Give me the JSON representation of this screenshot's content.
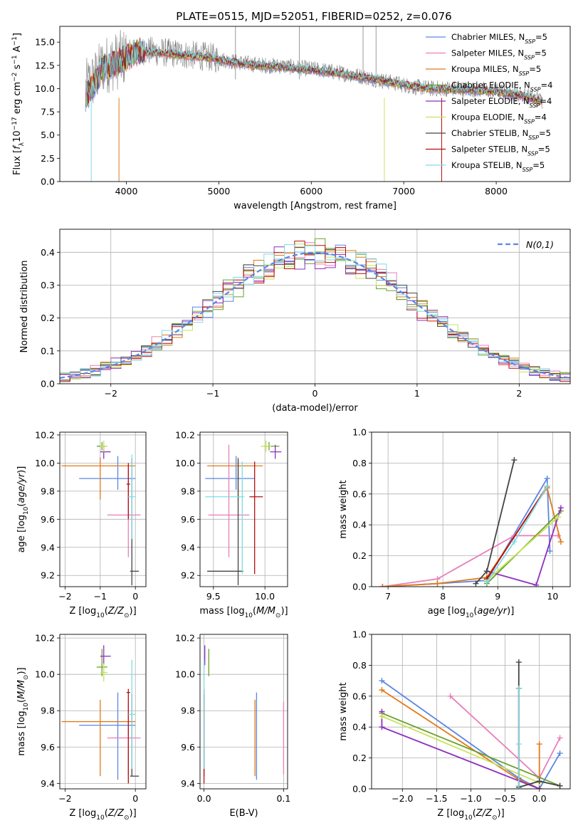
{
  "figure": {
    "title": "PLATE=0515, MJD=52051, FIBERID=0252, z=0.076"
  },
  "models": [
    {
      "name": "Chabrier MILES",
      "nssp": "5",
      "color": "#5b86e5"
    },
    {
      "name": "Salpeter MILES",
      "nssp": "5",
      "color": "#e87fb8"
    },
    {
      "name": "Kroupa MILES",
      "nssp": "5",
      "color": "#e07b1a"
    },
    {
      "name": "Chabrier ELODIE",
      "nssp": "4",
      "color": "#6aa02c"
    },
    {
      "name": "Salpeter ELODIE",
      "nssp": "4",
      "color": "#8e2fbf"
    },
    {
      "name": "Kroupa ELODIE",
      "nssp": "4",
      "color": "#c8e35a"
    },
    {
      "name": "Chabrier STELIB",
      "nssp": "5",
      "color": "#444444"
    },
    {
      "name": "Salpeter STELIB",
      "nssp": "5",
      "color": "#b30f0f"
    },
    {
      "name": "Kroupa STELIB",
      "nssp": "5",
      "color": "#7fdbe6"
    }
  ],
  "chart_data": [
    {
      "id": "spectrum",
      "type": "line",
      "xlabel": "wavelength [Angstrom, rest frame]",
      "ylabel": "Flux [f_λ 10^-17 erg cm^-2 s^-1 A^-1]",
      "xlim": [
        3280,
        8800
      ],
      "ylim": [
        0,
        16.7
      ],
      "xticks": [
        4000,
        5000,
        6000,
        7000,
        8000
      ],
      "yticks": [
        0.0,
        2.5,
        5.0,
        7.5,
        10.0,
        12.5,
        15.0
      ],
      "grid": false,
      "legend": "upper right",
      "data_continuum": {
        "x": [
          3560,
          3650,
          3750,
          3850,
          3950,
          4000,
          4100,
          4200,
          4300,
          4500,
          4700,
          4900,
          5100,
          5300,
          5500,
          5700,
          5900,
          6100,
          6300,
          6500,
          6700,
          6900,
          7100,
          7300,
          7500,
          7800,
          8100,
          8300,
          8500
        ],
        "y": [
          10.0,
          11.0,
          12.5,
          12.8,
          13.2,
          13.5,
          14.0,
          14.1,
          14.0,
          13.8,
          13.6,
          13.4,
          13.0,
          12.7,
          12.5,
          12.4,
          12.2,
          12.0,
          11.7,
          11.4,
          11.0,
          10.6,
          10.2,
          10.0,
          10.0,
          9.9,
          9.6,
          9.3,
          8.7
        ]
      },
      "model_continuum": {
        "x": [
          3560,
          3650,
          3750,
          3850,
          3950,
          4000,
          4100,
          4200,
          4300,
          4500,
          4700,
          4900,
          5100,
          5300,
          5500,
          5700,
          5900,
          6100,
          6300,
          6500,
          6700,
          6900,
          7100,
          7300,
          7500,
          7800,
          8100,
          8300,
          8500
        ],
        "y": [
          9.0,
          10.5,
          12.2,
          12.5,
          13.0,
          13.3,
          13.9,
          14.0,
          13.9,
          13.7,
          13.5,
          13.3,
          12.9,
          12.6,
          12.4,
          12.3,
          12.1,
          11.9,
          11.6,
          11.3,
          11.0,
          10.6,
          10.2,
          10.0,
          9.9,
          9.8,
          9.5,
          9.2,
          8.6
        ]
      }
    },
    {
      "id": "residuals",
      "type": "histogram",
      "xlabel": "(data-model)/error",
      "ylabel": "Normed distribution",
      "xlim": [
        -2.5,
        2.5
      ],
      "ylim": [
        0,
        0.47
      ],
      "xticks": [
        -2,
        -1,
        0,
        1,
        2
      ],
      "yticks": [
        0.0,
        0.1,
        0.2,
        0.3,
        0.4
      ],
      "grid": true,
      "legend": "upper right",
      "reference_label": "N(0,1)",
      "reference_color": "#5b86e5",
      "bin_width": 0.1,
      "bin_start": -2.5
    },
    {
      "id": "age_vs_Z",
      "type": "errorbar",
      "xlabel": "Z [log10(Z/Z☉)]",
      "ylabel": "age  [log10(age/yr)]",
      "xlim": [
        -2.15,
        0.3
      ],
      "ylim": [
        9.12,
        10.22
      ],
      "xticks": [
        -2,
        -1,
        0
      ],
      "yticks": [
        9.2,
        9.4,
        9.6,
        9.8,
        10.0,
        10.2
      ],
      "grid": true,
      "points": [
        {
          "model": 0,
          "x": -0.5,
          "xerr": [
            1.1,
            0.5
          ],
          "y": 9.89,
          "yerr": [
            0.08,
            0.16
          ]
        },
        {
          "model": 1,
          "x": -0.2,
          "xerr": [
            0.6,
            0.35
          ],
          "y": 9.63,
          "yerr": [
            0.3,
            0.35
          ]
        },
        {
          "model": 2,
          "x": -1.0,
          "xerr": [
            1.1,
            1.0
          ],
          "y": 9.98,
          "yerr": [
            0.24,
            0.06
          ]
        },
        {
          "model": 3,
          "x": -0.95,
          "xerr": [
            0.15,
            0.15
          ],
          "y": 10.12,
          "yerr": [
            0.03,
            0.03
          ]
        },
        {
          "model": 4,
          "x": -0.9,
          "xerr": [
            0.1,
            0.2
          ],
          "y": 10.08,
          "yerr": [
            0.05,
            0.05
          ]
        },
        {
          "model": 5,
          "x": -0.9,
          "xerr": [
            0.1,
            0.1
          ],
          "y": 10.12,
          "yerr": [
            0.04,
            0.04
          ]
        },
        {
          "model": 6,
          "x": -0.1,
          "xerr": [
            0.05,
            0.2
          ],
          "y": 9.23,
          "yerr": [
            0.1,
            0.8
          ]
        },
        {
          "model": 7,
          "x": -0.2,
          "xerr": [
            0.05,
            0.05
          ],
          "y": 9.85,
          "yerr": [
            0.25,
            0.15
          ]
        },
        {
          "model": 8,
          "x": -0.1,
          "xerr": [
            0.1,
            0.1
          ],
          "y": 9.76,
          "yerr": [
            0.3,
            0.3
          ]
        }
      ]
    },
    {
      "id": "age_vs_mass",
      "type": "errorbar",
      "xlabel": "mass [log10(M/M☉)]",
      "ylabel": "",
      "xlim": [
        9.37,
        10.22
      ],
      "ylim": [
        9.12,
        10.22
      ],
      "xticks": [
        9.5,
        10.0
      ],
      "yticks": [
        9.2,
        9.4,
        9.6,
        9.8,
        10.0,
        10.2
      ],
      "grid": true,
      "points": [
        {
          "model": 0,
          "x": 9.72,
          "xerr": [
            0.3,
            0.18
          ],
          "y": 9.89,
          "yerr": [
            0.08,
            0.16
          ]
        },
        {
          "model": 1,
          "x": 9.65,
          "xerr": [
            0.2,
            0.2
          ],
          "y": 9.63,
          "yerr": [
            0.3,
            0.5
          ]
        },
        {
          "model": 2,
          "x": 9.74,
          "xerr": [
            0.3,
            0.24
          ],
          "y": 9.98,
          "yerr": [
            0.24,
            0.06
          ]
        },
        {
          "model": 3,
          "x": 10.04,
          "xerr": [
            0.05,
            0.1
          ],
          "y": 10.12,
          "yerr": [
            0.03,
            0.03
          ]
        },
        {
          "model": 4,
          "x": 10.1,
          "xerr": [
            0.05,
            0.06
          ],
          "y": 10.08,
          "yerr": [
            0.05,
            0.05
          ]
        },
        {
          "model": 5,
          "x": 10.01,
          "xerr": [
            0.05,
            0.05
          ],
          "y": 10.12,
          "yerr": [
            0.04,
            0.04
          ]
        },
        {
          "model": 6,
          "x": 9.74,
          "xerr": [
            0.3,
            0.05
          ],
          "y": 9.23,
          "yerr": [
            0.1,
            0.8
          ]
        },
        {
          "model": 7,
          "x": 9.9,
          "xerr": [
            0.05,
            0.08
          ],
          "y": 9.76,
          "yerr": [
            0.55,
            0.25
          ]
        },
        {
          "model": 8,
          "x": 9.78,
          "xerr": [
            0.36,
            0.02
          ],
          "y": 9.76,
          "yerr": [
            0.55,
            0.25
          ]
        }
      ]
    },
    {
      "id": "mass_weight_vs_age",
      "type": "line",
      "xlabel": "age  [log10(age/yr)]",
      "ylabel": "mass weight",
      "xlim": [
        6.7,
        10.32
      ],
      "ylim": [
        0,
        1.0
      ],
      "xticks": [
        7,
        8,
        9,
        10
      ],
      "yticks": [
        0.0,
        0.2,
        0.4,
        0.6,
        0.8,
        1.0
      ],
      "grid": true,
      "series": [
        {
          "model": 0,
          "x": [
            6.9,
            7.9,
            8.8,
            9.9,
            9.95
          ],
          "y": [
            0.0,
            0.02,
            0.04,
            0.7,
            0.23
          ]
        },
        {
          "model": 1,
          "x": [
            6.9,
            7.9,
            9.3,
            10.1
          ],
          "y": [
            0.0,
            0.05,
            0.33,
            0.33
          ]
        },
        {
          "model": 2,
          "x": [
            6.9,
            7.9,
            8.8,
            9.9,
            10.15
          ],
          "y": [
            0.0,
            0.02,
            0.06,
            0.64,
            0.29
          ]
        },
        {
          "model": 3,
          "x": [
            8.8,
            10.15
          ],
          "y": [
            0.02,
            0.49
          ]
        },
        {
          "model": 4,
          "x": [
            8.8,
            9.7,
            10.15
          ],
          "y": [
            0.1,
            0.01,
            0.51
          ]
        },
        {
          "model": 5,
          "x": [
            8.8,
            10.1
          ],
          "y": [
            0.04,
            0.45
          ]
        },
        {
          "model": 6,
          "x": [
            8.6,
            8.8,
            9.3
          ],
          "y": [
            0.02,
            0.1,
            0.82
          ]
        },
        {
          "model": 7,
          "x": [
            8.8,
            9.9
          ],
          "y": [
            0.05,
            0.65
          ]
        },
        {
          "model": 8,
          "x": [
            8.8,
            9.3,
            9.9
          ],
          "y": [
            0.03,
            0.29,
            0.65
          ]
        }
      ]
    },
    {
      "id": "mass_vs_Z",
      "type": "errorbar",
      "xlabel": "Z [log10(Z/Z☉)]",
      "ylabel": "mass [log10(M/M☉)]",
      "xlim": [
        -2.15,
        0.3
      ],
      "ylim": [
        9.37,
        10.22
      ],
      "xticks": [
        -2,
        0
      ],
      "yticks": [
        9.4,
        9.6,
        9.8,
        10.0,
        10.2
      ],
      "grid": true,
      "points": [
        {
          "model": 0,
          "x": -0.5,
          "xerr": [
            1.1,
            0.5
          ],
          "y": 9.72,
          "yerr": [
            0.3,
            0.18
          ]
        },
        {
          "model": 1,
          "x": -0.2,
          "xerr": [
            0.6,
            0.35
          ],
          "y": 9.65,
          "yerr": [
            0.2,
            0.2
          ]
        },
        {
          "model": 2,
          "x": -1.0,
          "xerr": [
            1.1,
            1.0
          ],
          "y": 9.74,
          "yerr": [
            0.3,
            0.12
          ]
        },
        {
          "model": 3,
          "x": -0.95,
          "xerr": [
            0.15,
            0.15
          ],
          "y": 10.04,
          "yerr": [
            0.05,
            0.1
          ]
        },
        {
          "model": 4,
          "x": -0.9,
          "xerr": [
            0.1,
            0.2
          ],
          "y": 10.1,
          "yerr": [
            0.05,
            0.06
          ]
        },
        {
          "model": 5,
          "x": -0.9,
          "xerr": [
            0.1,
            0.1
          ],
          "y": 10.01,
          "yerr": [
            0.05,
            0.05
          ]
        },
        {
          "model": 6,
          "x": -0.1,
          "xerr": [
            0.05,
            0.2
          ],
          "y": 9.44,
          "yerr": [
            0.0,
            0.45
          ]
        },
        {
          "model": 7,
          "x": -0.2,
          "xerr": [
            0.05,
            0.05
          ],
          "y": 9.9,
          "yerr": [
            0.5,
            0.02
          ]
        },
        {
          "model": 8,
          "x": -0.1,
          "xerr": [
            0.1,
            0.1
          ],
          "y": 9.78,
          "yerr": [
            0.3,
            0.3
          ]
        }
      ]
    },
    {
      "id": "mass_vs_EBV",
      "type": "errorbar",
      "xlabel": "E(B-V)",
      "ylabel": "",
      "xlim": [
        -0.005,
        0.105
      ],
      "ylim": [
        9.37,
        10.22
      ],
      "xticks": [
        0.0,
        0.1
      ],
      "yticks": [
        9.4,
        9.6,
        9.8,
        10.0,
        10.2
      ],
      "grid": true,
      "points": [
        {
          "model": 0,
          "x": 0.066,
          "y": 9.72,
          "yerr": [
            0.3,
            0.18
          ]
        },
        {
          "model": 1,
          "x": 0.1,
          "y": 9.65,
          "yerr": [
            0.2,
            0.2
          ]
        },
        {
          "model": 2,
          "x": 0.064,
          "y": 9.74,
          "yerr": [
            0.3,
            0.12
          ]
        },
        {
          "model": 3,
          "x": 0.006,
          "y": 10.04,
          "yerr": [
            0.05,
            0.1
          ]
        },
        {
          "model": 4,
          "x": 0.001,
          "y": 10.1,
          "yerr": [
            0.05,
            0.06
          ]
        },
        {
          "model": 5,
          "x": 0.0,
          "y": 10.01,
          "yerr": [
            0.05,
            0.05
          ]
        },
        {
          "model": 6,
          "x": 0.0,
          "y": 9.44,
          "yerr": [
            0.0,
            0.45
          ]
        },
        {
          "model": 7,
          "x": 0.0,
          "y": 9.9,
          "yerr": [
            0.5,
            0.02
          ]
        },
        {
          "model": 8,
          "x": 0.0,
          "y": 9.78,
          "yerr": [
            0.3,
            0.3
          ]
        }
      ]
    },
    {
      "id": "mass_weight_vs_Z",
      "type": "line",
      "xlabel": "Z [log10(Z/Z☉)]",
      "ylabel": "mass weight",
      "xlim": [
        -2.45,
        0.45
      ],
      "ylim": [
        0,
        1.0
      ],
      "xticks": [
        -2.0,
        -1.5,
        -1.0,
        -0.5,
        0.0
      ],
      "yticks": [
        0.0,
        0.2,
        0.4,
        0.6,
        0.8,
        1.0
      ],
      "grid": true,
      "series": [
        {
          "model": 0,
          "x": [
            -2.3,
            -0.3,
            0.0,
            0.3
          ],
          "y": [
            0.7,
            0.07,
            0.0,
            0.23
          ]
        },
        {
          "model": 1,
          "x": [
            -1.3,
            0.0,
            0.3
          ],
          "y": [
            0.6,
            0.07,
            0.33
          ]
        },
        {
          "model": 2,
          "x": [
            -2.3,
            -0.3,
            0.0,
            0.0
          ],
          "y": [
            0.64,
            0.06,
            0.0,
            0.29
          ]
        },
        {
          "model": 3,
          "x": [
            -2.3,
            0.3
          ],
          "y": [
            0.49,
            0.02
          ]
        },
        {
          "model": 4,
          "x": [
            -2.3,
            -2.3,
            0.0
          ],
          "y": [
            0.5,
            0.4,
            0.0
          ]
        },
        {
          "model": 5,
          "x": [
            -2.3,
            0.0
          ],
          "y": [
            0.47,
            0.04
          ]
        },
        {
          "model": 6,
          "x": [
            -0.3,
            -0.3,
            0.0,
            0.3
          ],
          "y": [
            0.82,
            0.01,
            0.05,
            0.02
          ]
        },
        {
          "model": 7,
          "x": [
            -0.3,
            -0.3
          ],
          "y": [
            0.65,
            0.02
          ]
        },
        {
          "model": 8,
          "x": [
            -0.3,
            -0.3,
            -0.3
          ],
          "y": [
            0.65,
            0.29,
            0.02
          ]
        }
      ]
    }
  ]
}
